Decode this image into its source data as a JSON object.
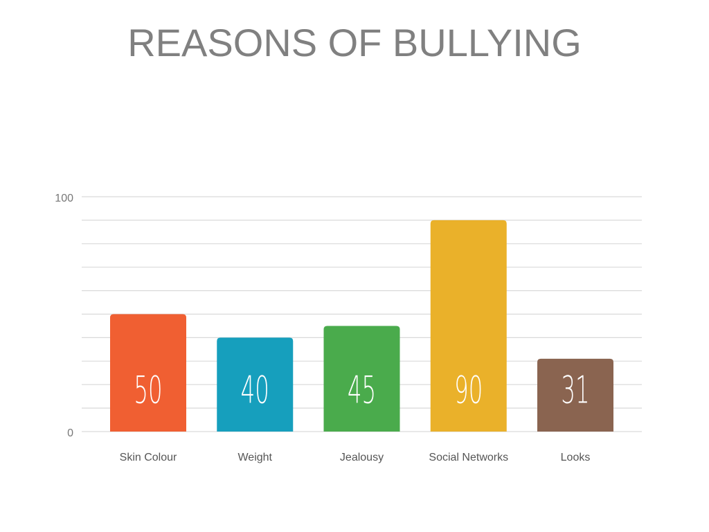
{
  "chart_data": {
    "type": "bar",
    "title": "REASONS OF BULLYING",
    "categories": [
      "Skin Colour",
      "Weight",
      "Jealousy",
      "Social Networks",
      "Looks"
    ],
    "values": [
      50,
      40,
      45,
      90,
      31
    ],
    "colors": [
      "#f05f32",
      "#169fbd",
      "#4aab4c",
      "#eab12a",
      "#8a6450"
    ],
    "ylim": [
      0,
      100
    ],
    "yticks": [
      0,
      100
    ],
    "minor_yticks": [
      10,
      20,
      30,
      40,
      50,
      60,
      70,
      80,
      90
    ],
    "grid": true
  }
}
